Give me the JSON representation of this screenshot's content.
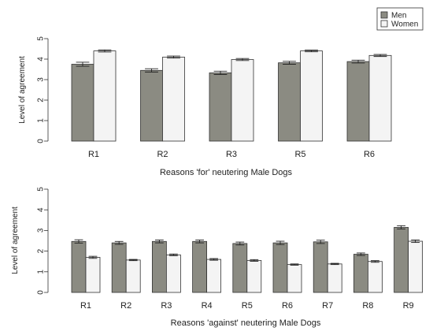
{
  "colors": {
    "men": "#8b8b82",
    "women": "#f4f4f4",
    "stroke": "#333333"
  },
  "legend": {
    "placement": "top-right",
    "items": [
      {
        "label": "Men",
        "series": "men"
      },
      {
        "label": "Women",
        "series": "women"
      }
    ]
  },
  "chart_data": [
    {
      "type": "bar",
      "title": "",
      "xlabel": "Reasons 'for' neutering Male Dogs",
      "ylabel": "Level of agreement",
      "ylim": [
        0,
        5
      ],
      "yticks": [
        0,
        1,
        2,
        3,
        4,
        5
      ],
      "categories": [
        "R1",
        "R2",
        "R3",
        "R5",
        "R6"
      ],
      "series": [
        {
          "name": "Men",
          "key": "men",
          "values": [
            3.75,
            3.45,
            3.33,
            3.82,
            3.88
          ],
          "errors": [
            0.1,
            0.08,
            0.08,
            0.07,
            0.07
          ]
        },
        {
          "name": "Women",
          "key": "women",
          "values": [
            4.4,
            4.1,
            3.98,
            4.4,
            4.18
          ],
          "errors": [
            0.05,
            0.05,
            0.05,
            0.04,
            0.05
          ]
        }
      ]
    },
    {
      "type": "bar",
      "title": "",
      "xlabel": "Reasons 'against' neutering Male Dogs",
      "ylabel": "Level of agreement",
      "ylim": [
        0,
        5
      ],
      "yticks": [
        0,
        1,
        2,
        3,
        4,
        5
      ],
      "categories": [
        "R1",
        "R2",
        "R3",
        "R4",
        "R5",
        "R6",
        "R7",
        "R8",
        "R9"
      ],
      "series": [
        {
          "name": "Men",
          "key": "men",
          "values": [
            2.47,
            2.4,
            2.47,
            2.47,
            2.37,
            2.4,
            2.45,
            1.85,
            3.15
          ],
          "errors": [
            0.08,
            0.07,
            0.07,
            0.07,
            0.07,
            0.08,
            0.08,
            0.06,
            0.08
          ]
        },
        {
          "name": "Women",
          "key": "women",
          "values": [
            1.7,
            1.57,
            1.82,
            1.6,
            1.55,
            1.35,
            1.38,
            1.5,
            2.48
          ],
          "errors": [
            0.05,
            0.03,
            0.04,
            0.04,
            0.04,
            0.03,
            0.03,
            0.04,
            0.06
          ]
        }
      ]
    }
  ]
}
